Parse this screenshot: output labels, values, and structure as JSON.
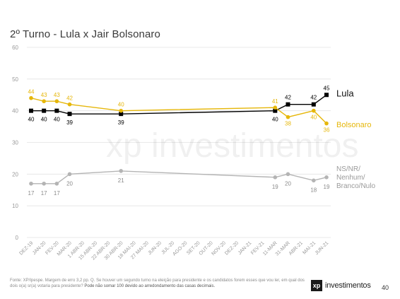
{
  "title": "2º Turno - Lula x Jair Bolsonaro",
  "footnote_main": "Fonte: XP/Ipespe. Margem de erro 3,2 pp. Q. Se houver um segundo turno na eleição para presidente e os candidatos forem esses que vou ler, em qual dos dois o(a) sr(a) votaria para presidente? ",
  "footnote_note": "Pode não somar 100 devido ao arredondamento das casas decimais.",
  "brand_mark": "xp",
  "brand_name": "investimentos",
  "watermark": "xp investimentos",
  "page_number": "40",
  "colors": {
    "lula": "#000000",
    "bolsonaro": "#e6b70b",
    "other": "#b4b4b4",
    "grid": "#e3e3e3",
    "axis_text": "#9a9a9a"
  },
  "chart_data": {
    "type": "line",
    "ylim": [
      0,
      60
    ],
    "yticks": [
      0,
      10,
      20,
      30,
      40,
      50,
      60
    ],
    "grid": true,
    "x": [
      "DEZ-19",
      "JAN-20",
      "FEV-20",
      "MAR-20",
      "1 ABR-20",
      "15 ABR-20",
      "22 ABR-20",
      "30 ABR-20",
      "18 MAI-20",
      "27 MAI-20",
      "JUN-20",
      "JUL-20",
      "AGO-20",
      "SET-20",
      "OUT-20",
      "NOV-20",
      "DEZ-20",
      "JAN-21",
      "FEV-21",
      "11-MAR",
      "31-MAR",
      "ABR-21",
      "MAI-21",
      "JUN-21"
    ],
    "series": [
      {
        "name": "Lula",
        "color": "#000000",
        "marker": "square",
        "points": [
          {
            "x": "DEZ-19",
            "y": 40,
            "label": "40"
          },
          {
            "x": "JAN-20",
            "y": 40,
            "label": "40"
          },
          {
            "x": "FEV-20",
            "y": 40,
            "label": "40"
          },
          {
            "x": "MAR-20",
            "y": 39,
            "label": "39"
          },
          {
            "x": "30 ABR-20",
            "y": 39,
            "label": "39"
          },
          {
            "x": "11-MAR",
            "y": 40,
            "label": "40"
          },
          {
            "x": "31-MAR",
            "y": 42,
            "label": "42"
          },
          {
            "x": "MAI-21",
            "y": 42,
            "label": "42"
          },
          {
            "x": "JUN-21",
            "y": 45,
            "label": "45"
          }
        ]
      },
      {
        "name": "Bolsonaro",
        "color": "#e6b70b",
        "marker": "circle",
        "points": [
          {
            "x": "DEZ-19",
            "y": 44,
            "label": "44"
          },
          {
            "x": "JAN-20",
            "y": 43,
            "label": "43"
          },
          {
            "x": "FEV-20",
            "y": 43,
            "label": "43"
          },
          {
            "x": "MAR-20",
            "y": 42,
            "label": "42"
          },
          {
            "x": "30 ABR-20",
            "y": 40,
            "label": "40"
          },
          {
            "x": "11-MAR",
            "y": 41,
            "label": "41"
          },
          {
            "x": "31-MAR",
            "y": 38,
            "label": "38"
          },
          {
            "x": "MAI-21",
            "y": 40,
            "label": "40"
          },
          {
            "x": "JUN-21",
            "y": 36,
            "label": "36"
          }
        ]
      },
      {
        "name": "NS/NR/ Nenhum/ Branco/Nulo",
        "color": "#b4b4b4",
        "marker": "circle",
        "points": [
          {
            "x": "DEZ-19",
            "y": 17,
            "label": "17"
          },
          {
            "x": "JAN-20",
            "y": 17,
            "label": "17"
          },
          {
            "x": "FEV-20",
            "y": 17,
            "label": "17"
          },
          {
            "x": "MAR-20",
            "y": 20,
            "label": "20"
          },
          {
            "x": "30 ABR-20",
            "y": 21,
            "label": "21"
          },
          {
            "x": "11-MAR",
            "y": 19,
            "label": "19"
          },
          {
            "x": "31-MAR",
            "y": 20,
            "label": "20"
          },
          {
            "x": "MAI-21",
            "y": 18,
            "label": "18"
          },
          {
            "x": "JUN-21",
            "y": 19,
            "label": "19"
          }
        ]
      }
    ],
    "end_labels": {
      "Lula": [
        "Lula"
      ],
      "Bolsonaro": [
        "Bolsonaro"
      ],
      "NS/NR/ Nenhum/ Branco/Nulo": [
        "NS/NR/",
        "Nenhum/",
        "Branco/Nulo"
      ]
    }
  }
}
